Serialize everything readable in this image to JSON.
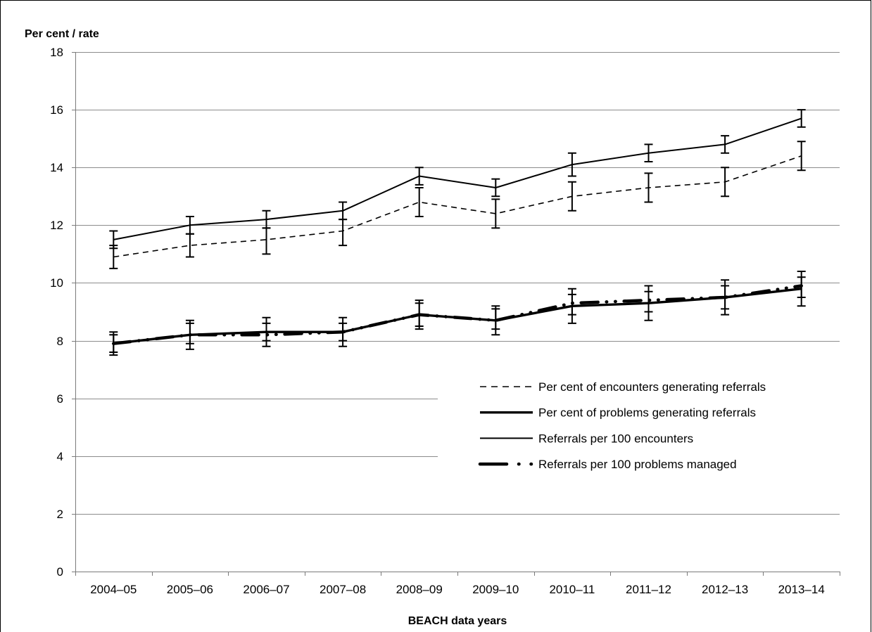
{
  "chart_data": {
    "type": "line",
    "xlabel": "BEACH data years",
    "ylabel": "Per cent / rate",
    "categories": [
      "2004–05",
      "2005–06",
      "2006–07",
      "2007–08",
      "2008–09",
      "2009–10",
      "2010–11",
      "2011–12",
      "2012–13",
      "2013–14"
    ],
    "ylim": [
      0,
      18
    ],
    "yticks": [
      0,
      2,
      4,
      6,
      8,
      10,
      12,
      14,
      16,
      18
    ],
    "grid": true,
    "error_bars": true,
    "legend_position": "lower-right",
    "series": [
      {
        "name": "Per cent of encounters generating referrals",
        "values": [
          10.9,
          11.3,
          11.5,
          11.8,
          12.8,
          12.4,
          13.0,
          13.3,
          13.5,
          14.4
        ],
        "ci_low": [
          10.5,
          10.9,
          11.0,
          11.3,
          12.3,
          11.9,
          12.5,
          12.8,
          13.0,
          13.9
        ],
        "ci_high": [
          11.3,
          11.7,
          11.9,
          12.2,
          13.3,
          12.9,
          13.5,
          13.8,
          14.0,
          14.9
        ]
      },
      {
        "name": "Per cent of problems generating referrals",
        "values": [
          7.9,
          8.2,
          8.3,
          8.3,
          8.9,
          8.7,
          9.2,
          9.3,
          9.5,
          9.8
        ],
        "ci_low": [
          7.6,
          7.9,
          8.0,
          8.0,
          8.5,
          8.4,
          8.9,
          9.0,
          9.1,
          9.5
        ],
        "ci_high": [
          8.2,
          8.6,
          8.6,
          8.6,
          9.3,
          9.1,
          9.6,
          9.7,
          9.9,
          10.2
        ]
      },
      {
        "name": "Referrals per 100 encounters",
        "values": [
          11.5,
          12.0,
          12.2,
          12.5,
          13.7,
          13.3,
          14.1,
          14.5,
          14.8,
          15.7
        ],
        "ci_low": [
          11.2,
          11.7,
          11.9,
          12.2,
          13.4,
          13.0,
          13.7,
          14.2,
          14.5,
          15.4
        ],
        "ci_high": [
          11.8,
          12.3,
          12.5,
          12.8,
          14.0,
          13.6,
          14.5,
          14.8,
          15.1,
          16.0
        ]
      },
      {
        "name": "Referrals per 100 problems managed",
        "values": [
          7.9,
          8.2,
          8.2,
          8.3,
          8.9,
          8.7,
          9.3,
          9.4,
          9.5,
          9.9
        ],
        "ci_low": [
          7.5,
          7.7,
          7.8,
          7.8,
          8.4,
          8.2,
          8.6,
          8.7,
          8.9,
          9.2
        ],
        "ci_high": [
          8.3,
          8.7,
          8.8,
          8.8,
          9.4,
          9.2,
          9.8,
          9.9,
          10.1,
          10.4
        ]
      }
    ]
  },
  "colors": {
    "series": "#000000",
    "grid": "#8c8c8c",
    "axis": "#7a7a7a",
    "background": "#ffffff",
    "border": "#000000"
  }
}
